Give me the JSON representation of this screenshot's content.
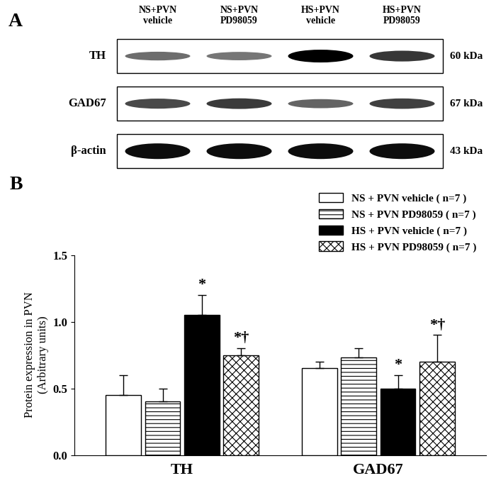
{
  "blot": {
    "panel_label": "A",
    "lanes": [
      "NS+PVN\nvehicle",
      "NS+PVN\nPD98059",
      "HS+PVN\nvehicle",
      "HS+PVN\nPD98059"
    ],
    "rows": [
      {
        "label": "TH",
        "size": "60 kDa"
      },
      {
        "label": "GAD67",
        "size": "67 kDa"
      },
      {
        "label": "β-actin",
        "size": "43 kDa"
      }
    ]
  },
  "chart_panel_label": "B",
  "chart_data": {
    "type": "bar",
    "y_label": "Protein expression in PVN\n(Arbitrary units)",
    "categories": [
      "TH",
      "GAD67"
    ],
    "series": [
      {
        "name": "NS + PVN vehicle ( n=7 )",
        "color": "#ffffff",
        "values": [
          0.45,
          0.65
        ],
        "errors": [
          0.15,
          0.05
        ],
        "annotations": [
          null,
          null
        ]
      },
      {
        "name": "NS + PVN PD98059 ( n=7 )",
        "color": "#ffffff",
        "values": [
          0.4,
          0.73
        ],
        "errors": [
          0.1,
          0.07
        ],
        "annotations": [
          null,
          null
        ]
      },
      {
        "name": "HS + PVN vehicle ( n=7 )",
        "color": "#000000",
        "values": [
          1.05,
          0.5
        ],
        "errors": [
          0.15,
          0.1
        ],
        "annotations": [
          "*",
          "*"
        ]
      },
      {
        "name": "HS + PVN PD98059 ( n=7 )",
        "color": "#ffffff",
        "values": [
          0.75,
          0.7
        ],
        "errors": [
          0.05,
          0.2
        ],
        "annotations": [
          "*†",
          "*†"
        ]
      }
    ],
    "ylim": [
      0,
      1.5
    ],
    "yticks": [
      {
        "value": 0,
        "label": "0.0"
      },
      0.5,
      {
        "value": 1.0,
        "label": "1.0"
      },
      1.5
    ],
    "grid": false,
    "legend": "upper right"
  }
}
